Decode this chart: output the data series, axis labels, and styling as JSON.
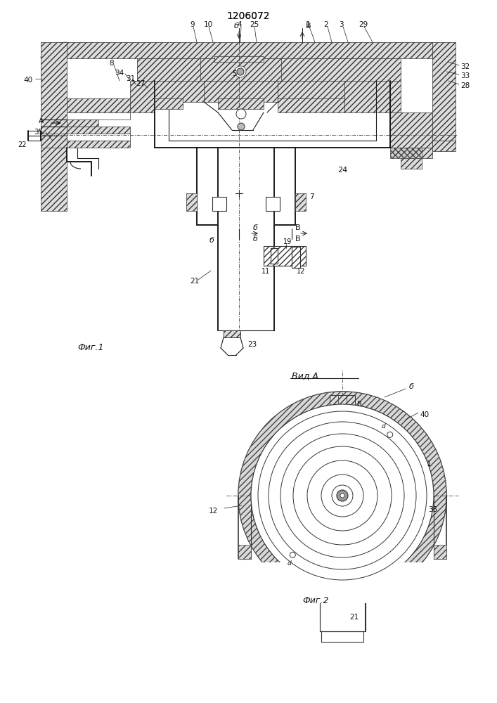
{
  "title": "1206072",
  "fig1_label": "Фиг.1",
  "fig2_label": "Фиг.2",
  "vid_label": "Вид A",
  "bg_color": "#ffffff",
  "line_color": "#1a1a1a",
  "lw": 0.8,
  "lw2": 1.4
}
